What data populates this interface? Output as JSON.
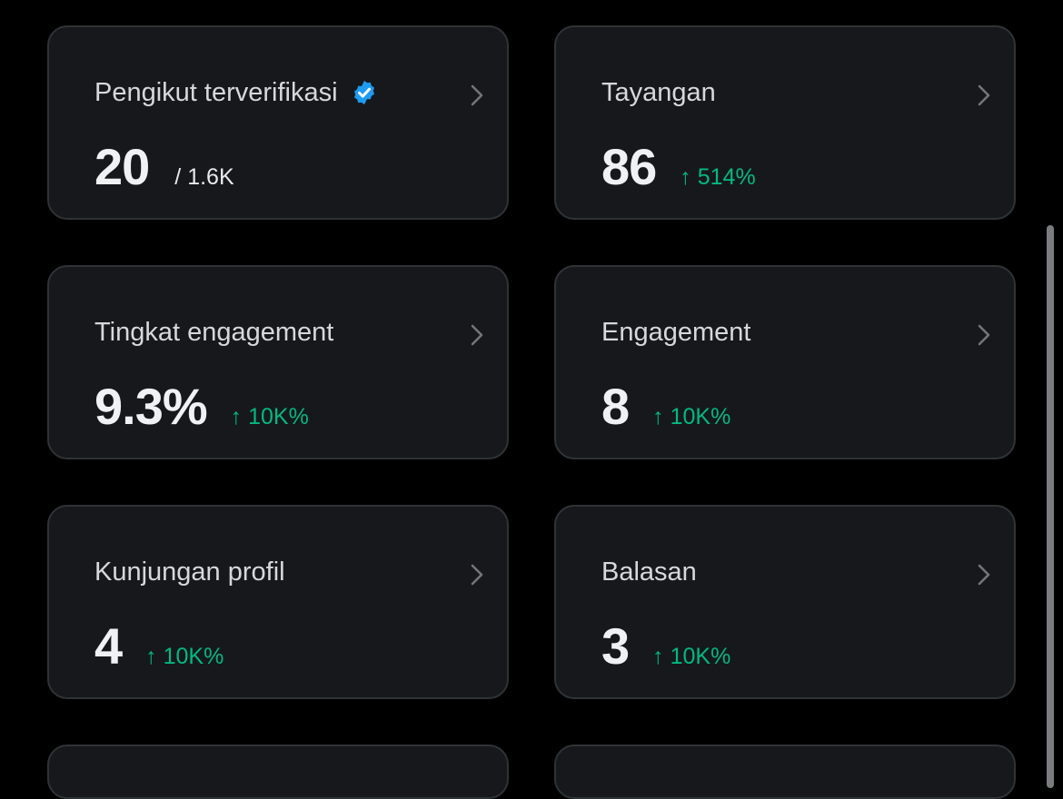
{
  "cards": [
    {
      "title": "Pengikut terverifikasi",
      "value": "20",
      "total": "/ 1.6K",
      "change": ""
    },
    {
      "title": "Tayangan",
      "value": "86",
      "total": "",
      "change": "↑ 514%"
    },
    {
      "title": "Tingkat engagement",
      "value": "9.3%",
      "total": "",
      "change": "↑ 10K%"
    },
    {
      "title": "Engagement",
      "value": "8",
      "total": "",
      "change": "↑ 10K%"
    },
    {
      "title": "Kunjungan profil",
      "value": "4",
      "total": "",
      "change": "↑ 10K%"
    },
    {
      "title": "Balasan",
      "value": "3",
      "total": "",
      "change": "↑ 10K%"
    }
  ],
  "icons": {
    "verified": "verified-badge-icon",
    "chevron": "chevron-right-icon"
  },
  "colors": {
    "background": "#000000",
    "card_background": "#16181c",
    "card_border": "#2f3336",
    "positive_change": "#00ba7c",
    "verified_badge": "#1d9bf0"
  }
}
